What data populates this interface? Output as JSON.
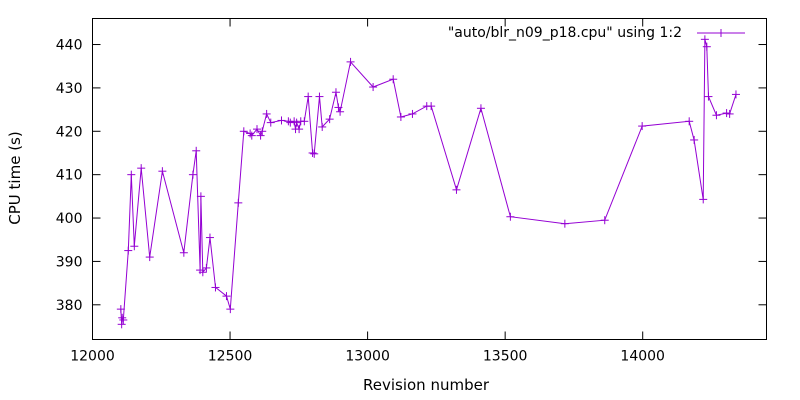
{
  "chart_data": {
    "type": "line",
    "xlabel": "Revision number",
    "ylabel": "CPU time (s)",
    "xlim": [
      12000,
      14450
    ],
    "ylim": [
      372,
      446
    ],
    "xticks": [
      12000,
      12500,
      13000,
      13500,
      14000
    ],
    "yticks": [
      380,
      390,
      400,
      410,
      420,
      430,
      440
    ],
    "grid": false,
    "legend_position": "top-right",
    "colors": {
      "series": "#9400d3",
      "axis": "#000000"
    },
    "series": [
      {
        "name": "\"auto/blr_n09_p18.cpu\" using 1:2",
        "marker": "plus",
        "points": [
          [
            12103,
            379.0
          ],
          [
            12106,
            375.5
          ],
          [
            12108,
            377.0
          ],
          [
            12112,
            376.5
          ],
          [
            12130,
            392.5
          ],
          [
            12141,
            410.0
          ],
          [
            12152,
            393.5
          ],
          [
            12177,
            411.5
          ],
          [
            12208,
            391.0
          ],
          [
            12254,
            410.8
          ],
          [
            12332,
            392.0
          ],
          [
            12365,
            410.0
          ],
          [
            12377,
            415.5
          ],
          [
            12391,
            388.0
          ],
          [
            12394,
            405.0
          ],
          [
            12401,
            387.5
          ],
          [
            12414,
            388.5
          ],
          [
            12427,
            395.5
          ],
          [
            12447,
            384.0
          ],
          [
            12487,
            382.0
          ],
          [
            12501,
            379.0
          ],
          [
            12530,
            403.5
          ],
          [
            12550,
            420.0
          ],
          [
            12573,
            419.5
          ],
          [
            12579,
            419.0
          ],
          [
            12598,
            420.5
          ],
          [
            12611,
            419.0
          ],
          [
            12617,
            420.0
          ],
          [
            12633,
            424.0
          ],
          [
            12648,
            422.0
          ],
          [
            12687,
            422.5
          ],
          [
            12712,
            422.3
          ],
          [
            12719,
            422.0
          ],
          [
            12733,
            422.3
          ],
          [
            12738,
            420.5
          ],
          [
            12742,
            422.0
          ],
          [
            12751,
            420.5
          ],
          [
            12757,
            422.3
          ],
          [
            12770,
            422.3
          ],
          [
            12784,
            428.0
          ],
          [
            12800,
            415.0
          ],
          [
            12806,
            414.8
          ],
          [
            12825,
            428.0
          ],
          [
            12835,
            421.0
          ],
          [
            12862,
            422.8
          ],
          [
            12885,
            429.0
          ],
          [
            12894,
            425.5
          ],
          [
            12900,
            424.5
          ],
          [
            12938,
            436.0
          ],
          [
            13020,
            430.2
          ],
          [
            13093,
            432.0
          ],
          [
            13121,
            423.3
          ],
          [
            13163,
            424.0
          ],
          [
            13215,
            425.8
          ],
          [
            13231,
            425.8
          ],
          [
            13323,
            406.5
          ],
          [
            13412,
            425.3
          ],
          [
            13519,
            400.3
          ],
          [
            13717,
            398.7
          ],
          [
            13862,
            399.5
          ],
          [
            13998,
            421.2
          ],
          [
            14169,
            422.3
          ],
          [
            14187,
            418.0
          ],
          [
            14220,
            404.3
          ],
          [
            14226,
            441.2
          ],
          [
            14233,
            439.5
          ],
          [
            14239,
            428.0
          ],
          [
            14268,
            423.7
          ],
          [
            14305,
            424.2
          ],
          [
            14316,
            424.0
          ],
          [
            14339,
            428.5
          ]
        ]
      }
    ]
  }
}
